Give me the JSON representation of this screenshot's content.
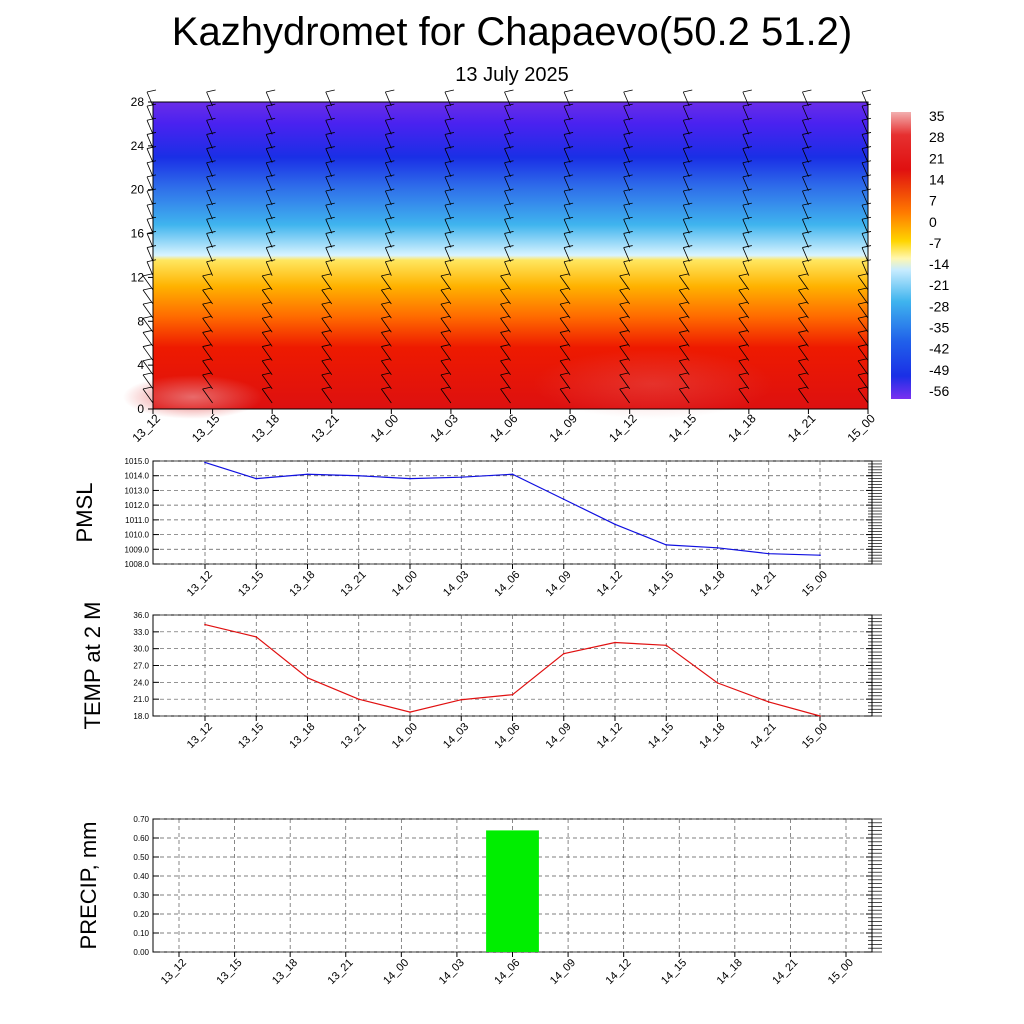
{
  "title": "Kazhydromet for Chapaevo(50.2 51.2)",
  "subtitle": "13 July 2025",
  "time_labels": [
    "13_12",
    "13_15",
    "13_18",
    "13_21",
    "14_00",
    "14_03",
    "14_06",
    "14_09",
    "14_12",
    "14_15",
    "14_18",
    "14_21",
    "15_00"
  ],
  "chart_data": [
    {
      "type": "heatmap",
      "name": "cross-section",
      "x": [
        "13_12",
        "13_15",
        "13_18",
        "13_21",
        "14_00",
        "14_03",
        "14_06",
        "14_09",
        "14_12",
        "14_15",
        "14_18",
        "14_21",
        "15_00"
      ],
      "yticks": [
        0,
        4,
        8,
        12,
        16,
        20,
        24,
        28
      ],
      "ylim": [
        0,
        28
      ],
      "colorbar": {
        "labels": [
          "35",
          "28",
          "21",
          "14",
          "7",
          "0",
          "-7",
          "-14",
          "-21",
          "-28",
          "-35",
          "-42",
          "-49",
          "-56"
        ],
        "colors": {
          "top": "#f2b0b0",
          "warm": "#e01010",
          "orange": "#ff9a00",
          "yellow": "#fff27a",
          "cyan": "#3fb4ee",
          "blue": "#1a2fe6",
          "violet": "#7a30f0"
        }
      },
      "wind_barbs": true
    },
    {
      "type": "line",
      "ylabel": "PMSL",
      "x": [
        "13_12",
        "13_15",
        "13_18",
        "13_21",
        "14_00",
        "14_03",
        "14_06",
        "14_09",
        "14_12",
        "14_15",
        "14_18",
        "14_21",
        "15_00"
      ],
      "values": [
        1014.9,
        1013.8,
        1014.1,
        1014.0,
        1013.8,
        1013.9,
        1014.1,
        1012.4,
        1010.7,
        1009.3,
        1009.1,
        1008.7,
        1008.6
      ],
      "yticks": [
        "1015.0",
        "1014.0",
        "1013.0",
        "1012.0",
        "1011.0",
        "1010.0",
        "1009.0",
        "1008.0"
      ],
      "ylim": [
        1008,
        1015
      ],
      "color": "#1010e0",
      "grid": true
    },
    {
      "type": "line",
      "ylabel": "TEMP at 2 M",
      "x": [
        "13_12",
        "13_15",
        "13_18",
        "13_21",
        "14_00",
        "14_03",
        "14_06",
        "14_09",
        "14_12",
        "14_15",
        "14_18",
        "14_21",
        "15_00"
      ],
      "values": [
        34.3,
        32.1,
        24.8,
        21.0,
        18.7,
        20.9,
        21.8,
        29.1,
        31.1,
        30.6,
        23.9,
        20.5,
        18.0
      ],
      "yticks": [
        "36.0",
        "33.0",
        "30.0",
        "27.0",
        "24.0",
        "21.0",
        "18.0"
      ],
      "ylim": [
        18,
        36
      ],
      "color": "#e01010",
      "grid": true
    },
    {
      "type": "bar",
      "ylabel": "PRECIP, mm",
      "x": [
        "13_12",
        "13_15",
        "13_18",
        "13_21",
        "14_00",
        "14_03",
        "14_06",
        "14_09",
        "14_12",
        "14_15",
        "14_18",
        "14_21",
        "15_00"
      ],
      "values": [
        0,
        0,
        0,
        0,
        0,
        0,
        0.64,
        0,
        0,
        0,
        0,
        0,
        0
      ],
      "yticks": [
        "0.70",
        "0.60",
        "0.50",
        "0.40",
        "0.30",
        "0.20",
        "0.10",
        "0.00"
      ],
      "ylim": [
        0,
        0.7
      ],
      "color": "#00ee00",
      "grid": true
    }
  ]
}
